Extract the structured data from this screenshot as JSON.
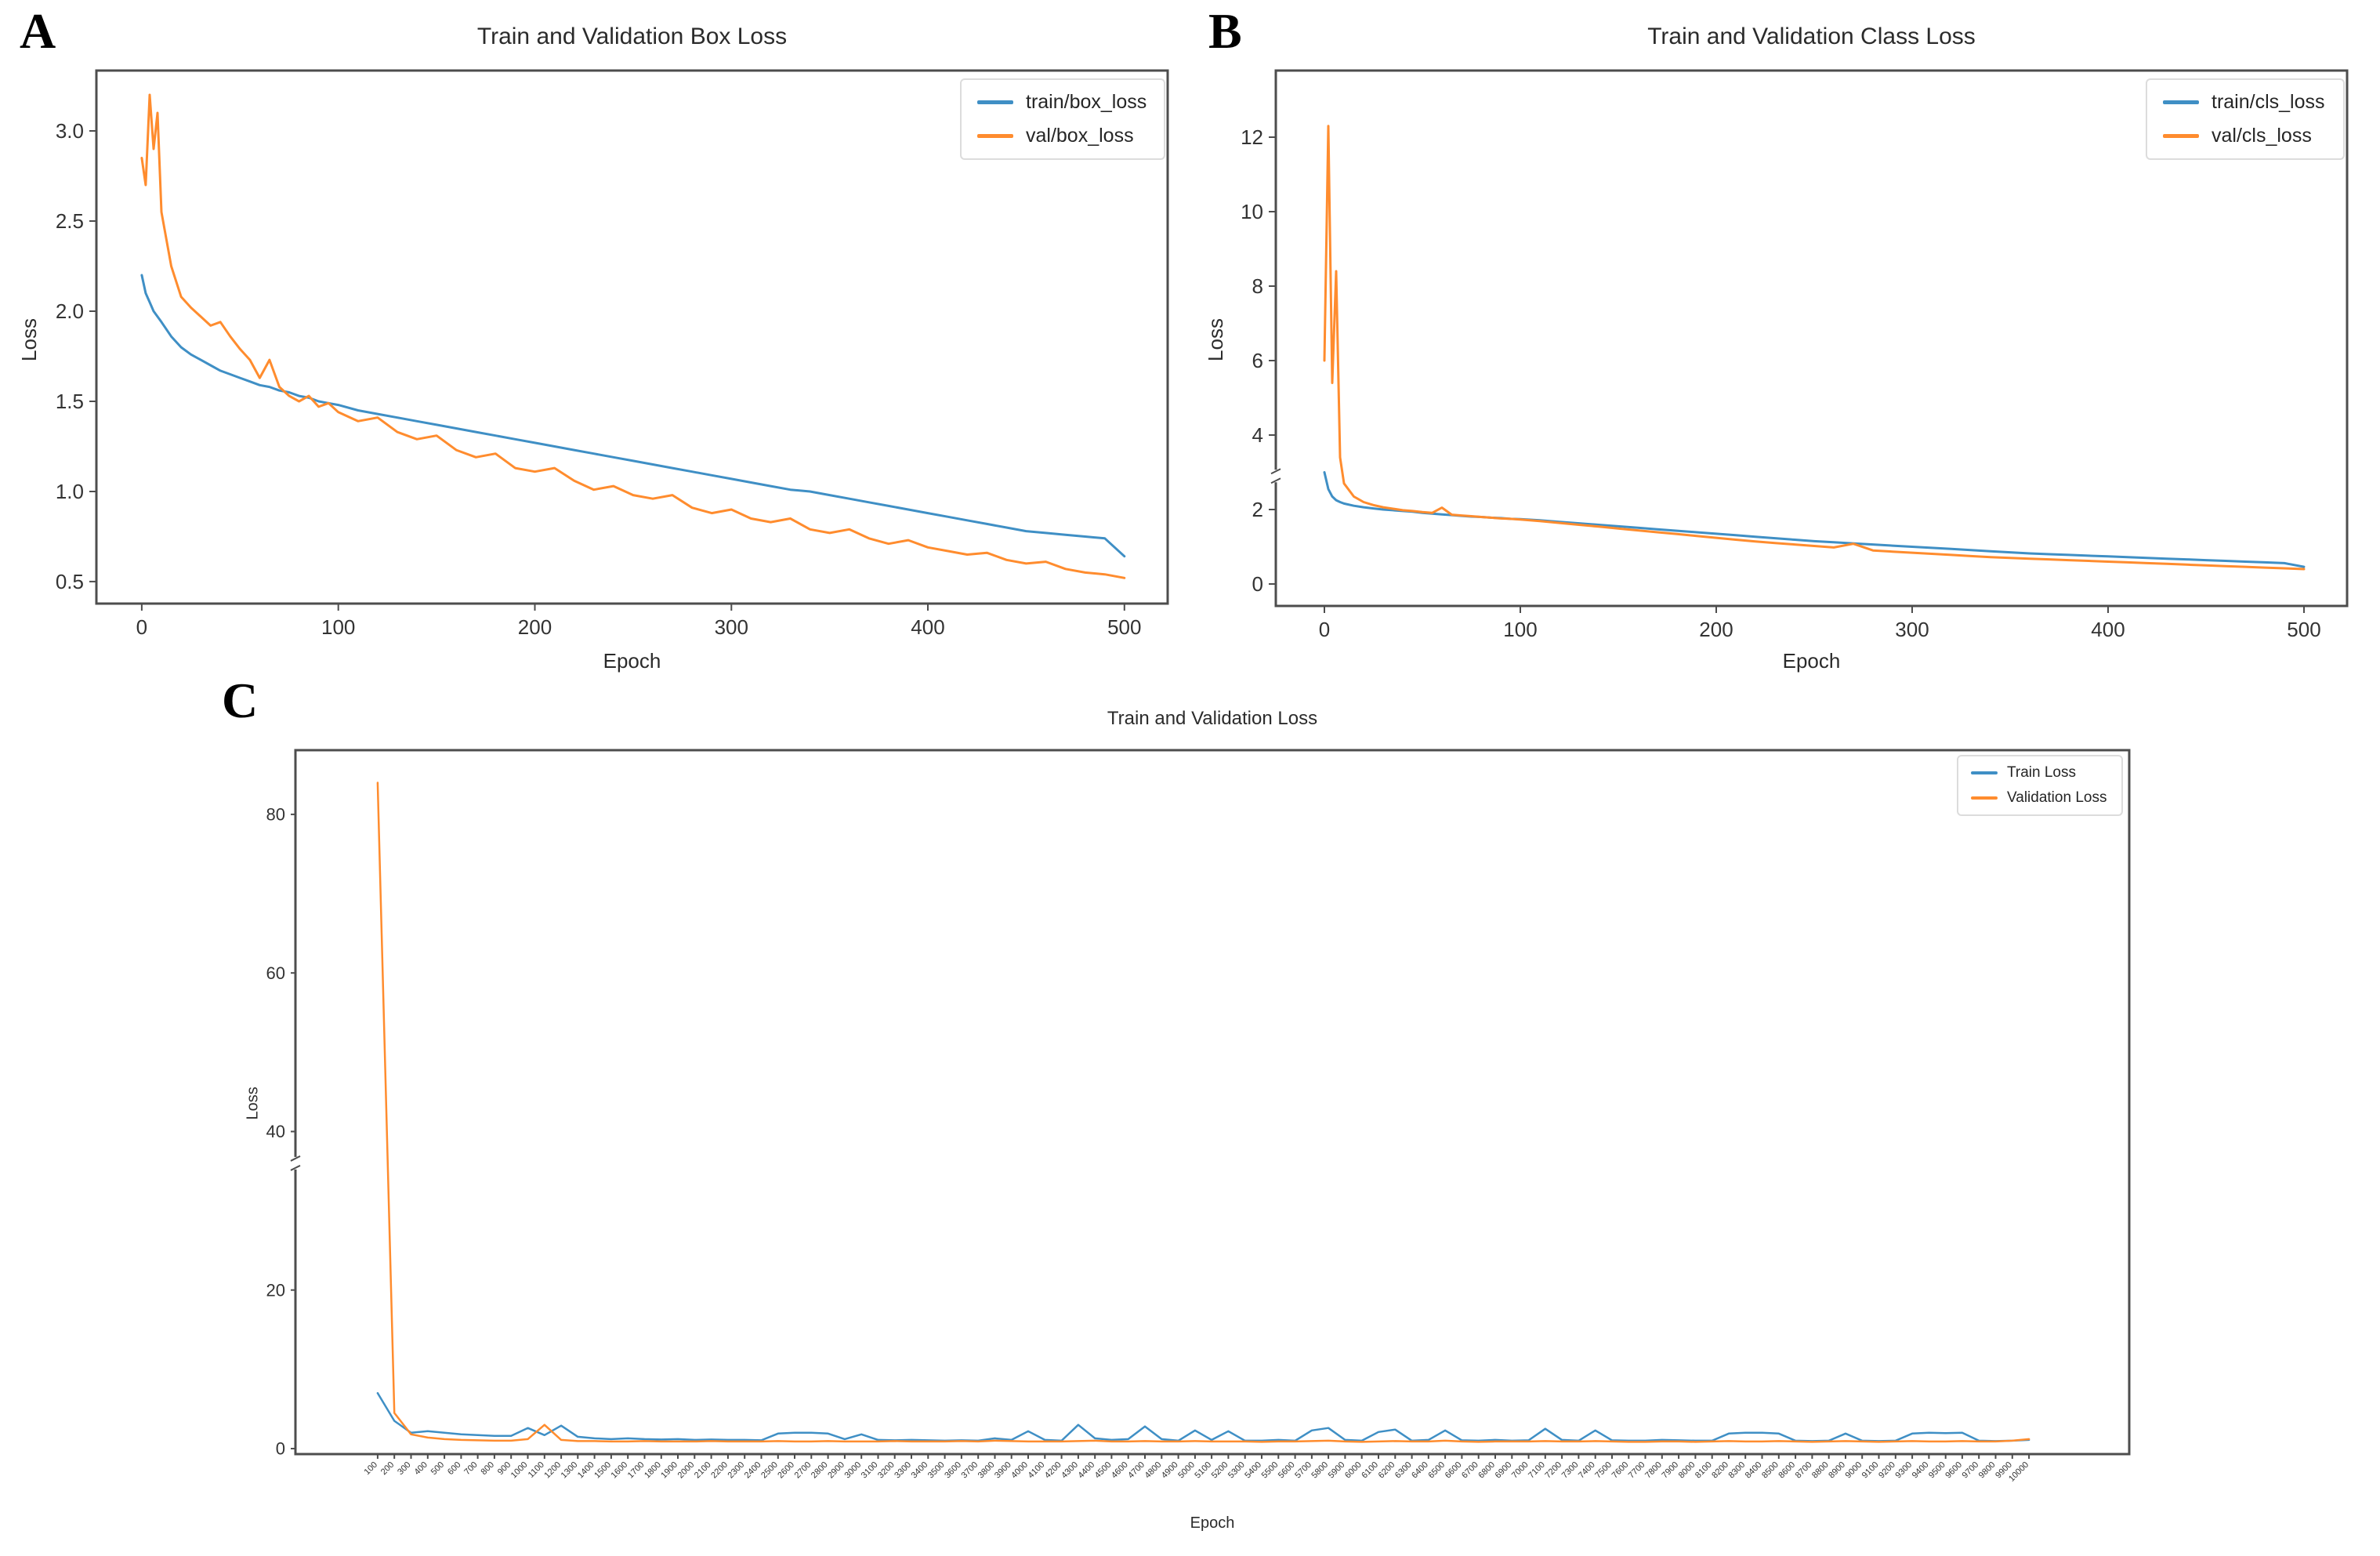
{
  "figure": {
    "panels": [
      {
        "label": "A"
      },
      {
        "label": "B"
      },
      {
        "label": "C"
      }
    ]
  },
  "colors": {
    "train_blue": "#3f8fc5",
    "val_orange": "#ff8c2e",
    "axis_gray": "#4d4d4d",
    "text_dark": "#2b2b2b"
  },
  "chart_data": [
    {
      "id": "box-loss",
      "type": "line",
      "title": "Train and Validation Box Loss",
      "xlabel": "Epoch",
      "ylabel": "Loss",
      "legend_position": "upper right",
      "grid": false,
      "xlim": [
        -23.1,
        522
      ],
      "ylim": [
        0.378,
        3.335
      ],
      "xticks": [
        0,
        100,
        200,
        300,
        400,
        500
      ],
      "yticks": [
        0.5,
        1.0,
        1.5,
        2.0,
        2.5,
        3.0
      ],
      "ytick_labels": [
        "0.5",
        "1.0",
        "1.5",
        "2.0",
        "2.5",
        "3.0"
      ],
      "x": [
        0,
        2,
        4,
        6,
        8,
        10,
        15,
        20,
        25,
        30,
        35,
        40,
        45,
        50,
        55,
        60,
        65,
        70,
        75,
        80,
        85,
        90,
        95,
        100,
        110,
        120,
        130,
        140,
        150,
        160,
        170,
        180,
        190,
        200,
        210,
        220,
        230,
        240,
        250,
        260,
        270,
        280,
        290,
        300,
        310,
        320,
        330,
        340,
        350,
        360,
        370,
        380,
        390,
        400,
        410,
        420,
        430,
        440,
        450,
        460,
        470,
        480,
        490,
        500
      ],
      "series": [
        {
          "name": "train/box_loss",
          "color": "#3f8fc5",
          "values": [
            2.2,
            2.1,
            2.05,
            2.0,
            1.97,
            1.94,
            1.86,
            1.8,
            1.76,
            1.73,
            1.7,
            1.67,
            1.65,
            1.63,
            1.61,
            1.59,
            1.58,
            1.56,
            1.55,
            1.53,
            1.52,
            1.5,
            1.49,
            1.48,
            1.45,
            1.43,
            1.41,
            1.39,
            1.37,
            1.35,
            1.33,
            1.31,
            1.29,
            1.27,
            1.25,
            1.23,
            1.21,
            1.19,
            1.17,
            1.15,
            1.13,
            1.11,
            1.09,
            1.07,
            1.05,
            1.03,
            1.01,
            1.0,
            0.98,
            0.96,
            0.94,
            0.92,
            0.9,
            0.88,
            0.86,
            0.84,
            0.82,
            0.8,
            0.78,
            0.77,
            0.76,
            0.75,
            0.74,
            0.64
          ]
        },
        {
          "name": "val/box_loss",
          "color": "#ff8c2e",
          "values": [
            2.85,
            2.7,
            3.2,
            2.9,
            3.1,
            2.55,
            2.25,
            2.08,
            2.02,
            1.97,
            1.92,
            1.94,
            1.86,
            1.79,
            1.73,
            1.63,
            1.73,
            1.58,
            1.53,
            1.5,
            1.53,
            1.47,
            1.49,
            1.44,
            1.39,
            1.41,
            1.33,
            1.29,
            1.31,
            1.23,
            1.19,
            1.21,
            1.13,
            1.11,
            1.13,
            1.06,
            1.01,
            1.03,
            0.98,
            0.96,
            0.98,
            0.91,
            0.88,
            0.9,
            0.85,
            0.83,
            0.85,
            0.79,
            0.77,
            0.79,
            0.74,
            0.71,
            0.73,
            0.69,
            0.67,
            0.65,
            0.66,
            0.62,
            0.6,
            0.61,
            0.57,
            0.55,
            0.54,
            0.52
          ]
        }
      ]
    },
    {
      "id": "class-loss",
      "type": "line",
      "title": "Train and Validation Class Loss",
      "xlabel": "Epoch",
      "ylabel": "Loss",
      "legend_position": "upper right",
      "grid": false,
      "ybreak": 2.9,
      "xlim": [
        -24.8,
        522
      ],
      "ylim": [
        -0.59,
        13.79
      ],
      "xticks": [
        0,
        100,
        200,
        300,
        400,
        500
      ],
      "yticks": [
        0,
        2,
        4,
        6,
        8,
        10,
        12
      ],
      "ytick_labels": [
        "0",
        "2",
        "4",
        "6",
        "8",
        "10",
        "12"
      ],
      "x": [
        0,
        2,
        4,
        6,
        8,
        10,
        15,
        20,
        25,
        30,
        35,
        40,
        45,
        50,
        55,
        60,
        65,
        70,
        75,
        80,
        85,
        90,
        95,
        100,
        110,
        120,
        130,
        140,
        150,
        160,
        170,
        180,
        190,
        200,
        210,
        220,
        230,
        240,
        250,
        260,
        270,
        280,
        290,
        300,
        310,
        320,
        330,
        340,
        350,
        360,
        370,
        380,
        390,
        400,
        410,
        420,
        430,
        440,
        450,
        460,
        470,
        480,
        490,
        500
      ],
      "series": [
        {
          "name": "train/cls_loss",
          "color": "#3f8fc5",
          "values": [
            3.0,
            2.55,
            2.35,
            2.25,
            2.2,
            2.16,
            2.1,
            2.06,
            2.03,
            2.0,
            1.98,
            1.96,
            1.94,
            1.91,
            1.89,
            1.87,
            1.85,
            1.83,
            1.81,
            1.8,
            1.78,
            1.77,
            1.75,
            1.74,
            1.71,
            1.67,
            1.63,
            1.59,
            1.55,
            1.51,
            1.47,
            1.43,
            1.39,
            1.35,
            1.31,
            1.27,
            1.23,
            1.19,
            1.15,
            1.12,
            1.09,
            1.06,
            1.03,
            1.0,
            0.97,
            0.94,
            0.91,
            0.88,
            0.85,
            0.82,
            0.8,
            0.78,
            0.76,
            0.74,
            0.72,
            0.7,
            0.68,
            0.66,
            0.64,
            0.62,
            0.6,
            0.58,
            0.56,
            0.46
          ]
        },
        {
          "name": "val/cls_loss",
          "color": "#ff8c2e",
          "values": [
            6.0,
            12.3,
            5.4,
            8.4,
            3.4,
            2.7,
            2.35,
            2.2,
            2.12,
            2.06,
            2.02,
            1.98,
            1.96,
            1.93,
            1.91,
            2.05,
            1.86,
            1.84,
            1.82,
            1.8,
            1.78,
            1.76,
            1.75,
            1.73,
            1.69,
            1.64,
            1.59,
            1.54,
            1.49,
            1.44,
            1.39,
            1.34,
            1.29,
            1.24,
            1.19,
            1.14,
            1.1,
            1.06,
            1.02,
            0.98,
            1.08,
            0.9,
            0.87,
            0.84,
            0.81,
            0.78,
            0.75,
            0.72,
            0.7,
            0.68,
            0.66,
            0.64,
            0.62,
            0.6,
            0.58,
            0.56,
            0.54,
            0.52,
            0.5,
            0.48,
            0.46,
            0.44,
            0.42,
            0.4
          ]
        }
      ]
    },
    {
      "id": "overall-loss",
      "type": "line",
      "title": "Train and Validation Loss",
      "xlabel": "Epoch",
      "ylabel": "Loss",
      "legend_position": "upper right",
      "grid": false,
      "ybreak": 36,
      "xlim": [
        -393,
        10601
      ],
      "ylim": [
        -0.69,
        88.1
      ],
      "xticks": [
        100,
        200,
        300,
        400,
        500,
        600,
        700,
        800,
        900,
        1000,
        1100,
        1200,
        1300,
        1400,
        1500,
        1600,
        1700,
        1800,
        1900,
        2000,
        2100,
        2200,
        2300,
        2400,
        2500,
        2600,
        2700,
        2800,
        2900,
        3000,
        3100,
        3200,
        3300,
        3400,
        3500,
        3600,
        3700,
        3800,
        3900,
        4000,
        4100,
        4200,
        4300,
        4400,
        4500,
        4600,
        4700,
        4800,
        4900,
        5000,
        5100,
        5200,
        5300,
        5400,
        5500,
        5600,
        5700,
        5800,
        5900,
        6000,
        6100,
        6200,
        6300,
        6400,
        6500,
        6600,
        6700,
        6800,
        6900,
        7000,
        7100,
        7200,
        7300,
        7400,
        7500,
        7600,
        7700,
        7800,
        7900,
        8000,
        8100,
        8200,
        8300,
        8400,
        8500,
        8600,
        8700,
        8800,
        8900,
        9000,
        9100,
        9200,
        9300,
        9400,
        9500,
        9600,
        9700,
        9800,
        9900,
        10000
      ],
      "yticks": [
        0,
        20,
        40,
        60,
        80
      ],
      "ytick_labels": [
        "0",
        "20",
        "40",
        "60",
        "80"
      ],
      "x": [
        100,
        200,
        300,
        400,
        500,
        600,
        700,
        800,
        900,
        1000,
        1100,
        1200,
        1300,
        1400,
        1500,
        1600,
        1700,
        1800,
        1900,
        2000,
        2100,
        2200,
        2300,
        2400,
        2500,
        2600,
        2700,
        2800,
        2900,
        3000,
        3100,
        3200,
        3300,
        3400,
        3500,
        3600,
        3700,
        3800,
        3900,
        4000,
        4100,
        4200,
        4300,
        4400,
        4500,
        4600,
        4700,
        4800,
        4900,
        5000,
        5100,
        5200,
        5300,
        5400,
        5500,
        5600,
        5700,
        5800,
        5900,
        6000,
        6100,
        6200,
        6300,
        6400,
        6500,
        6600,
        6700,
        6800,
        6900,
        7000,
        7100,
        7200,
        7300,
        7400,
        7500,
        7600,
        7700,
        7800,
        7900,
        8000,
        8100,
        8200,
        8300,
        8400,
        8500,
        8600,
        8700,
        8800,
        8900,
        9000,
        9100,
        9200,
        9300,
        9400,
        9500,
        9600,
        9700,
        9800,
        9900,
        10000
      ],
      "series": [
        {
          "name": "Train Loss",
          "color": "#3f8fc5",
          "values": [
            7.0,
            3.5,
            2.0,
            2.2,
            2.0,
            1.8,
            1.7,
            1.6,
            1.6,
            2.6,
            1.7,
            2.9,
            1.5,
            1.3,
            1.2,
            1.3,
            1.2,
            1.15,
            1.2,
            1.1,
            1.15,
            1.1,
            1.1,
            1.05,
            1.9,
            2.0,
            2.0,
            1.9,
            1.2,
            1.8,
            1.1,
            1.05,
            1.1,
            1.05,
            1.0,
            1.05,
            1.0,
            1.3,
            1.1,
            2.2,
            1.1,
            1.0,
            3.0,
            1.3,
            1.1,
            1.2,
            2.8,
            1.2,
            1.0,
            2.3,
            1.1,
            2.2,
            1.0,
            1.0,
            1.1,
            1.0,
            2.3,
            2.6,
            1.1,
            1.0,
            2.1,
            2.4,
            1.0,
            1.1,
            2.3,
            1.05,
            1.0,
            1.1,
            1.0,
            1.05,
            2.5,
            1.1,
            1.0,
            2.3,
            1.05,
            1.0,
            1.0,
            1.1,
            1.05,
            1.0,
            1.0,
            1.9,
            2.0,
            2.0,
            1.9,
            1.0,
            0.95,
            1.0,
            1.9,
            1.0,
            0.95,
            1.0,
            1.9,
            2.0,
            1.95,
            2.0,
            1.0,
            0.95,
            1.0,
            1.1
          ]
        },
        {
          "name": "Validation Loss",
          "color": "#ff8c2e",
          "values": [
            84.0,
            4.5,
            1.8,
            1.4,
            1.2,
            1.1,
            1.05,
            1.0,
            1.0,
            1.2,
            3.0,
            1.1,
            0.95,
            0.95,
            0.9,
            0.9,
            0.95,
            0.9,
            0.9,
            0.9,
            0.95,
            0.9,
            0.9,
            0.9,
            0.95,
            0.9,
            0.9,
            0.95,
            0.9,
            0.9,
            0.9,
            0.95,
            0.9,
            0.9,
            0.9,
            0.95,
            0.9,
            1.0,
            0.95,
            0.9,
            0.9,
            0.9,
            0.95,
            1.0,
            0.9,
            0.9,
            0.95,
            0.9,
            0.9,
            0.95,
            0.9,
            0.9,
            0.9,
            0.85,
            0.9,
            0.9,
            0.95,
            1.0,
            0.9,
            0.85,
            0.9,
            0.95,
            0.9,
            0.9,
            1.0,
            0.9,
            0.85,
            0.9,
            0.9,
            0.9,
            0.95,
            0.9,
            0.9,
            0.95,
            0.9,
            0.85,
            0.85,
            0.9,
            0.9,
            0.85,
            0.9,
            0.95,
            0.9,
            0.9,
            0.95,
            0.9,
            0.85,
            0.9,
            0.95,
            0.9,
            0.85,
            0.9,
            0.95,
            0.9,
            0.9,
            0.95,
            0.9,
            0.9,
            1.0,
            1.2
          ]
        }
      ]
    }
  ]
}
